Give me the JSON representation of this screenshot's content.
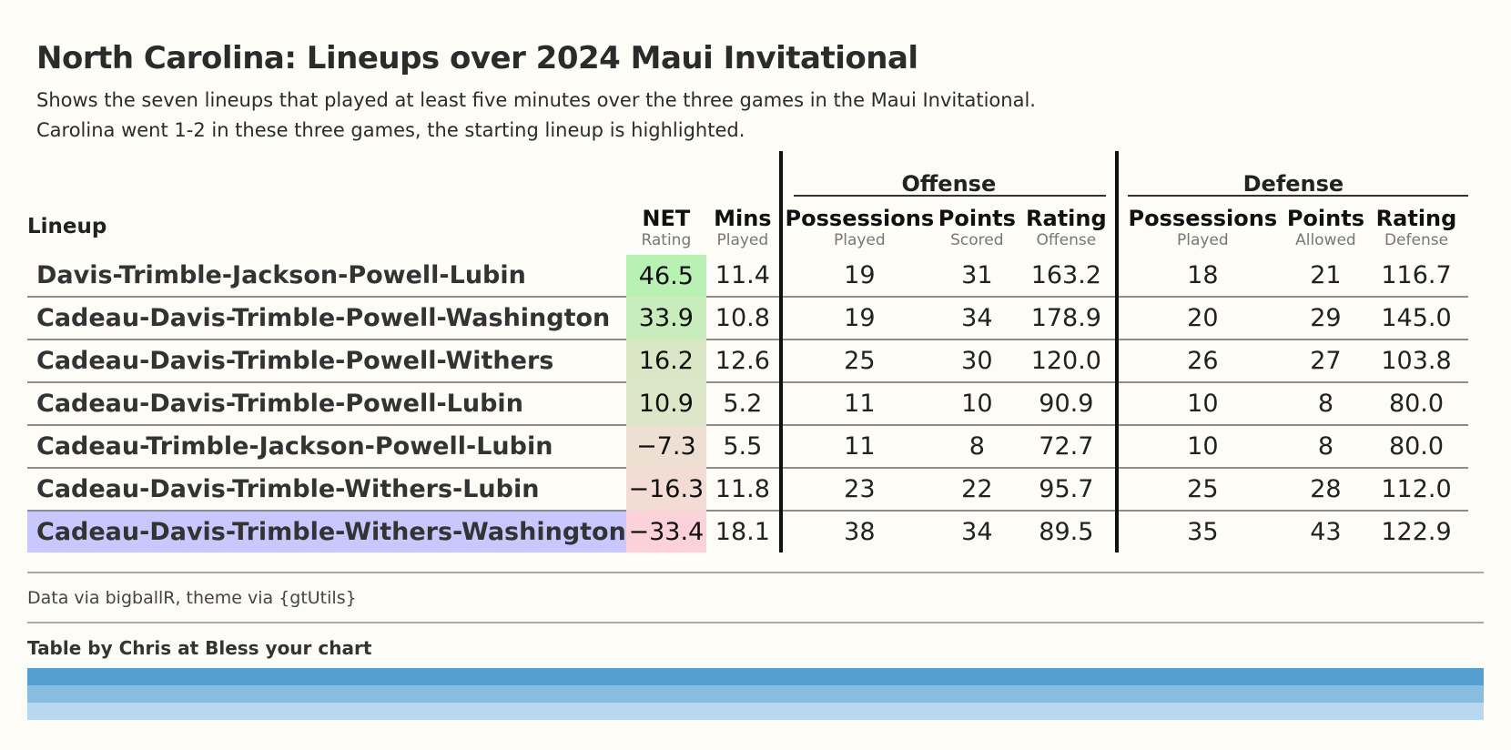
{
  "title": "North Carolina: Lineups over 2024 Maui Invitational",
  "subtitle_lines": [
    "Shows the seven lineups that played at least five minutes over the three games in the Maui Invitational.",
    "Carolina went 1-2 in these three games, the starting lineup is highlighted."
  ],
  "groups": {
    "offense": "Offense",
    "defense": "Defense"
  },
  "columns": {
    "lineup": "Lineup",
    "net": {
      "label": "NET",
      "sub": "Rating"
    },
    "mins": {
      "label": "Mins",
      "sub": "Played"
    },
    "off_poss": {
      "label": "Possessions",
      "sub": "Played"
    },
    "off_pts": {
      "label": "Points",
      "sub": "Scored"
    },
    "off_rtg": {
      "label": "Rating",
      "sub": "Offense"
    },
    "def_poss": {
      "label": "Possessions",
      "sub": "Played"
    },
    "def_pts": {
      "label": "Points",
      "sub": "Allowed"
    },
    "def_rtg": {
      "label": "Rating",
      "sub": "Defense"
    }
  },
  "rows": [
    {
      "lineup": "Davis-Trimble-Jackson-Powell-Lubin",
      "net": "46.5",
      "mins": "11.4",
      "off_poss": "19",
      "off_pts": "31",
      "off_rtg": "163.2",
      "def_poss": "18",
      "def_pts": "21",
      "def_rtg": "116.7",
      "net_color": "#b9f0b4",
      "highlight": false
    },
    {
      "lineup": "Cadeau-Davis-Trimble-Powell-Washington",
      "net": "33.9",
      "mins": "10.8",
      "off_poss": "19",
      "off_pts": "34",
      "off_rtg": "178.9",
      "def_poss": "20",
      "def_pts": "29",
      "def_rtg": "145.0",
      "net_color": "#c8ecbc",
      "highlight": false
    },
    {
      "lineup": "Cadeau-Davis-Trimble-Powell-Withers",
      "net": "16.2",
      "mins": "12.6",
      "off_poss": "25",
      "off_pts": "30",
      "off_rtg": "120.0",
      "def_poss": "26",
      "def_pts": "27",
      "def_rtg": "103.8",
      "net_color": "#dae7c6",
      "highlight": false
    },
    {
      "lineup": "Cadeau-Davis-Trimble-Powell-Lubin",
      "net": "10.9",
      "mins": "5.2",
      "off_poss": "11",
      "off_pts": "10",
      "off_rtg": "90.9",
      "def_poss": "10",
      "def_pts": "8",
      "def_rtg": "80.0",
      "net_color": "#dee6c9",
      "highlight": false
    },
    {
      "lineup": "Cadeau-Trimble-Jackson-Powell-Lubin",
      "net": "−7.3",
      "mins": "5.5",
      "off_poss": "11",
      "off_pts": "8",
      "off_rtg": "72.7",
      "def_poss": "10",
      "def_pts": "8",
      "def_rtg": "80.0",
      "net_color": "#ede0d2",
      "highlight": false
    },
    {
      "lineup": "Cadeau-Davis-Trimble-Withers-Lubin",
      "net": "−16.3",
      "mins": "11.8",
      "off_poss": "23",
      "off_pts": "22",
      "off_rtg": "95.7",
      "def_poss": "25",
      "def_pts": "28",
      "def_rtg": "112.0",
      "net_color": "#f2dcd3",
      "highlight": false
    },
    {
      "lineup": "Cadeau-Davis-Trimble-Withers-Washington",
      "net": "−33.4",
      "mins": "18.1",
      "off_poss": "38",
      "off_pts": "34",
      "off_rtg": "89.5",
      "def_poss": "35",
      "def_pts": "43",
      "def_rtg": "122.9",
      "net_color": "#fbd2d9",
      "highlight": true
    }
  ],
  "highlight_color": "#c8c8ff",
  "source": "Data via bigballR, theme via {gtUtils}",
  "credit": "Table by Chris at Bless your chart",
  "footer_bar_colors": [
    "#559fd0",
    "#86bde0",
    "#b8d8ef"
  ]
}
